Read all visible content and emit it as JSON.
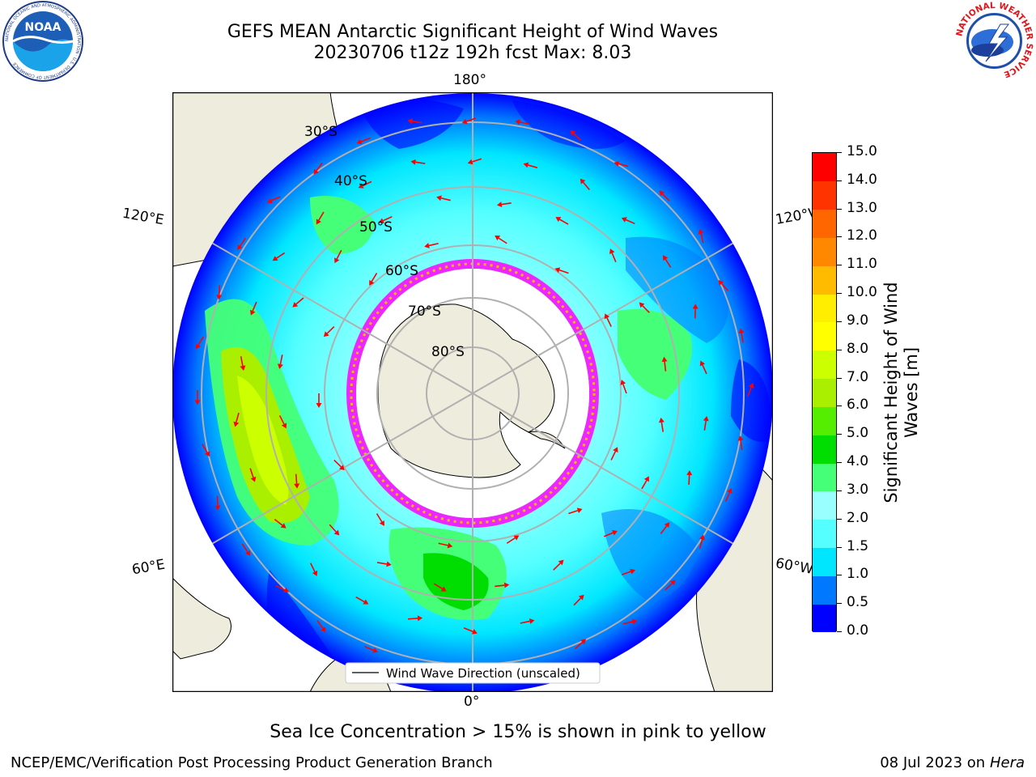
{
  "title": {
    "line1": "GEFS MEAN Antarctic Significant Height of Wind Waves",
    "line2": "20230706 t12z 192h fcst   Max: 8.03"
  },
  "logos": {
    "left": {
      "name": "noaa-logo",
      "text": "NOAA",
      "ring_text": "NATIONAL OCEANIC AND ATMOSPHERIC ADMINISTRATION · U.S. DEPARTMENT OF COMMERCE"
    },
    "right": {
      "name": "nws-logo",
      "ring_text": "NATIONAL WEATHER SERVICE"
    }
  },
  "map": {
    "projection": "south polar stereographic",
    "longitude_labels": {
      "top": "180°",
      "bottom": "0°",
      "left_upper": "120°E",
      "left_lower": "60°E",
      "right_upper": "120°W",
      "right_lower": "60°W"
    },
    "latitude_labels": [
      "30°S",
      "40°S",
      "50°S",
      "60°S",
      "70°S",
      "80°S"
    ],
    "legend": "Wind Wave Direction (unscaled)",
    "colors": {
      "land": "#eeecdc",
      "ocean_grid": "#b0b0b0",
      "arrow": "#ff0000",
      "ice": "#ff00ff"
    }
  },
  "colorbar": {
    "title_line1": "Significant Height of Wind",
    "title_line2": "Waves [m]",
    "ticks": [
      "0.0",
      "0.5",
      "1.0",
      "1.5",
      "2.0",
      "3.0",
      "4.0",
      "5.0",
      "6.0",
      "7.0",
      "8.0",
      "9.0",
      "10.0",
      "11.0",
      "12.0",
      "13.0",
      "14.0",
      "15.0"
    ],
    "colors": [
      "#0000ff",
      "#0078ff",
      "#00e6ff",
      "#55ffff",
      "#99ffff",
      "#44ff77",
      "#00dd00",
      "#55ee00",
      "#aaee00",
      "#ccff00",
      "#ffff00",
      "#ffee00",
      "#ffbb00",
      "#ff8800",
      "#ff6600",
      "#ff3300",
      "#ff0000"
    ]
  },
  "footer": {
    "note": "Sea Ice Concentration > 15% is shown in pink to yellow",
    "credit_left": "NCEP/EMC/Verification Post Processing Product Generation Branch",
    "credit_right_date": "08 Jul 2023 on",
    "credit_right_host": "Hera"
  }
}
